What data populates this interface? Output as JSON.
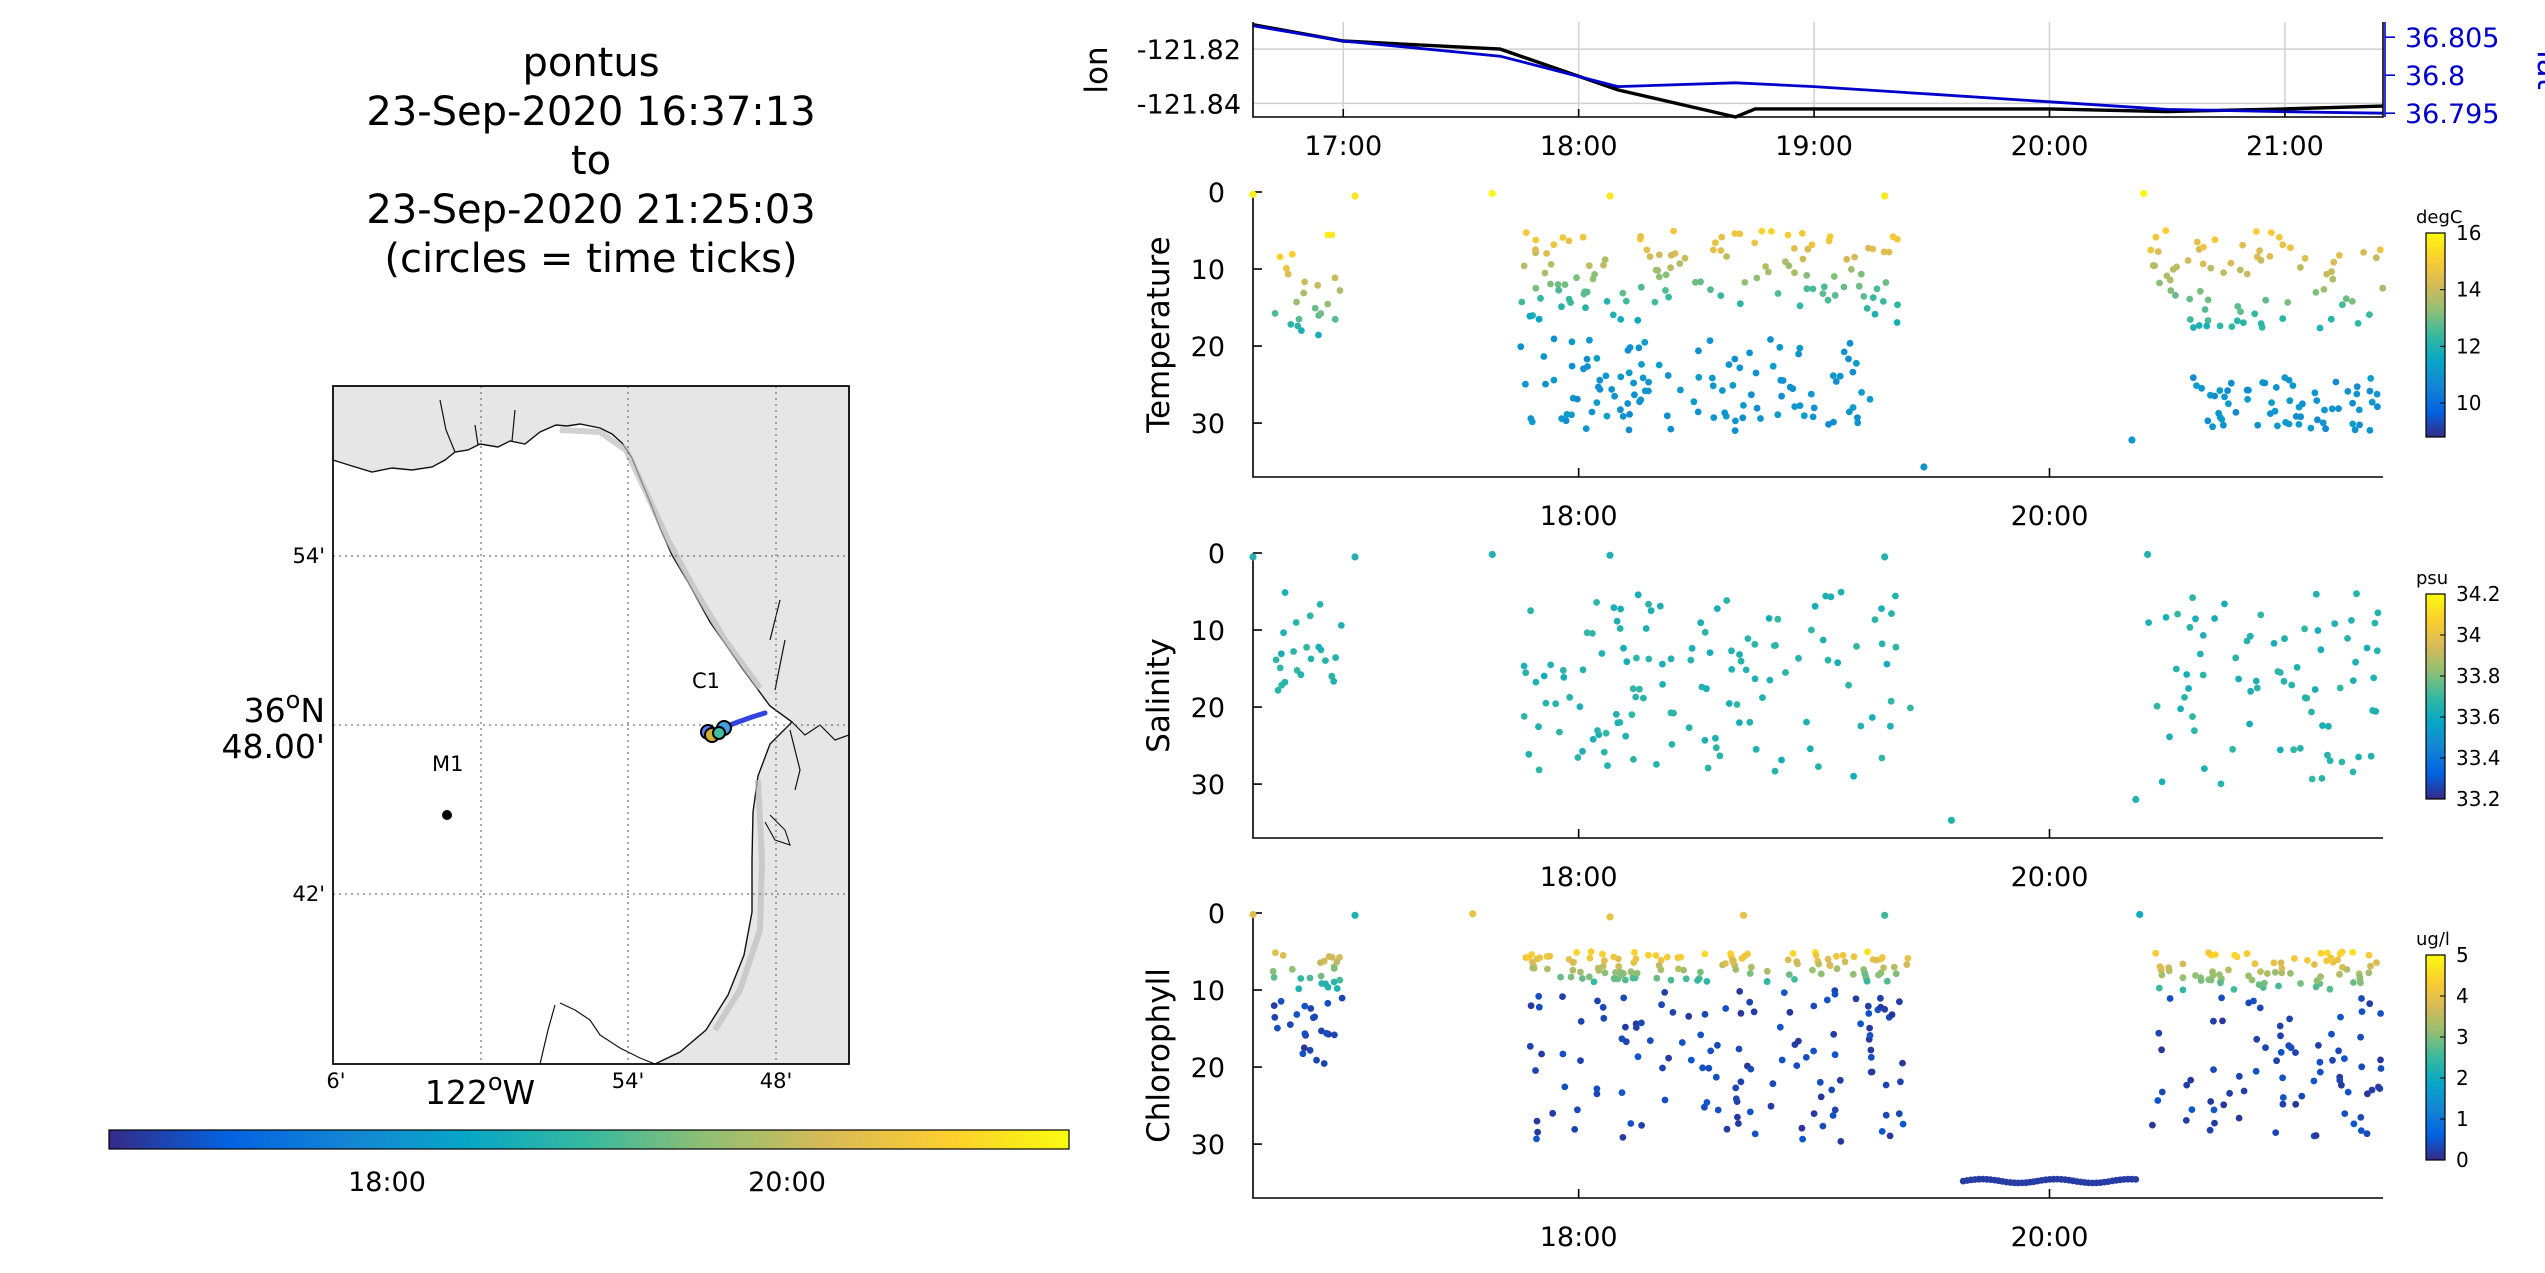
{
  "header": {
    "lines": [
      "pontus",
      "23-Sep-2020 16:37:13",
      "to",
      "23-Sep-2020 21:25:03",
      "(circles = time ticks)"
    ]
  },
  "map": {
    "lat_ticks": [
      "54'",
      "42'"
    ],
    "lat_center_lines": [
      "36",
      "N",
      "48.00'"
    ],
    "lon_ticks": [
      "6'",
      "54'",
      "48'"
    ],
    "lon_center": [
      "122",
      "W"
    ],
    "stations": [
      {
        "label": "M1",
        "lon": -122.035,
        "lat": 36.747
      },
      {
        "label": "C1",
        "lon": -121.845,
        "lat": 36.797
      }
    ],
    "colors": {
      "land": "#e6e6e6",
      "water": "#ffffff",
      "track": "#3344dd"
    }
  },
  "time_colorbar": {
    "ticks": [
      "18:00",
      "20:00"
    ],
    "colormap": "parula"
  },
  "chart_data": [
    {
      "type": "line",
      "name": "position",
      "ylabel": "lon",
      "ylabel_right": "lat",
      "x_ticks": [
        "17:00",
        "18:00",
        "19:00",
        "20:00",
        "21:00"
      ],
      "y_ticks_left": [
        "-121.82",
        "-121.84"
      ],
      "y_ticks_right": [
        "36.805",
        "36.8",
        "36.795"
      ],
      "xlim": [
        "16:37",
        "21:25"
      ],
      "ylim_left": [
        -121.845,
        -121.81
      ],
      "ylim_right": [
        36.7945,
        36.807
      ],
      "grid": true,
      "series": [
        {
          "color": "#000000",
          "x": [
            "16:37",
            "17:00",
            "17:40",
            "18:10",
            "18:40",
            "18:45",
            "19:30",
            "20:00",
            "20:30",
            "21:00",
            "21:25"
          ],
          "y": [
            -121.811,
            -121.817,
            -121.82,
            -121.835,
            -121.845,
            -121.842,
            -121.842,
            -121.842,
            -121.843,
            -121.842,
            -121.841
          ]
        },
        {
          "color": "#0000cc",
          "x": [
            "16:37",
            "17:00",
            "17:40",
            "18:10",
            "18:40",
            "19:00",
            "19:30",
            "20:00",
            "20:30",
            "21:00",
            "21:25"
          ],
          "y": [
            36.8065,
            36.8045,
            36.8025,
            36.7985,
            36.799,
            36.7985,
            36.7975,
            36.7965,
            36.7955,
            36.7952,
            36.795
          ]
        }
      ]
    },
    {
      "type": "scatter",
      "name": "temperature",
      "ylabel": "Temperature",
      "unit": "degC",
      "y_ticks": [
        "0",
        "10",
        "20",
        "30"
      ],
      "x_ticks": [
        "18:00",
        "20:00"
      ],
      "xlim": [
        "16:37",
        "21:25"
      ],
      "ylim": [
        37,
        0
      ],
      "clim": [
        8.8,
        16
      ],
      "cbar_ticks": [
        "16",
        "14",
        "12",
        "10"
      ],
      "seed": 11,
      "groups": [
        {
          "t": [
            "16:42",
            "17:00"
          ],
          "depth": [
            5,
            20
          ],
          "value": [
            16,
            11.5
          ]
        },
        {
          "t": [
            "17:45",
            "19:22"
          ],
          "depth": [
            5,
            17
          ],
          "value": [
            15,
            11.5
          ]
        },
        {
          "t": [
            "17:45",
            "19:15"
          ],
          "depth": [
            19,
            31
          ],
          "value": [
            11,
            11
          ]
        },
        {
          "t": [
            "20:25",
            "21:25"
          ],
          "depth": [
            5,
            18
          ],
          "value": [
            15,
            12
          ]
        },
        {
          "t": [
            "20:35",
            "21:25"
          ],
          "depth": [
            24,
            31
          ],
          "value": [
            11,
            11
          ]
        }
      ],
      "fixed_points": [
        {
          "t": "16:37",
          "depth": 0.3,
          "value": 15.8
        },
        {
          "t": "17:03",
          "depth": 0.5,
          "value": 15.5
        },
        {
          "t": "17:38",
          "depth": 0.2,
          "value": 15.9
        },
        {
          "t": "18:08",
          "depth": 0.5,
          "value": 15.6
        },
        {
          "t": "19:18",
          "depth": 0.5,
          "value": 15.7
        },
        {
          "t": "20:24",
          "depth": 0.2,
          "value": 15.9
        },
        {
          "t": "19:28",
          "depth": 35.7,
          "value": 11
        },
        {
          "t": "20:21",
          "depth": 32.2,
          "value": 11
        }
      ]
    },
    {
      "type": "scatter",
      "name": "salinity",
      "ylabel": "Salinity",
      "unit": "psu",
      "y_ticks": [
        "0",
        "10",
        "20",
        "30"
      ],
      "x_ticks": [
        "18:00",
        "20:00"
      ],
      "xlim": [
        "16:37",
        "21:25"
      ],
      "ylim": [
        37,
        0
      ],
      "clim": [
        33.2,
        34.2
      ],
      "cbar_ticks": [
        "34.2",
        "34",
        "33.8",
        "33.6",
        "33.4",
        "33.2"
      ],
      "seed": 23,
      "groups": [
        {
          "t": [
            "16:42",
            "17:00"
          ],
          "depth": [
            5,
            18
          ],
          "value": [
            33.65,
            33.65
          ]
        },
        {
          "t": [
            "17:45",
            "19:25"
          ],
          "depth": [
            5,
            29
          ],
          "value": [
            33.65,
            33.65
          ]
        },
        {
          "t": [
            "20:25",
            "21:25"
          ],
          "depth": [
            5,
            30
          ],
          "value": [
            33.65,
            33.65
          ]
        }
      ],
      "fixed_points": [
        {
          "t": "16:37",
          "depth": 0.5,
          "value": 33.65
        },
        {
          "t": "17:03",
          "depth": 0.5,
          "value": 33.65
        },
        {
          "t": "17:38",
          "depth": 0.2,
          "value": 33.65
        },
        {
          "t": "18:08",
          "depth": 0.3,
          "value": 33.65
        },
        {
          "t": "19:18",
          "depth": 0.5,
          "value": 33.65
        },
        {
          "t": "20:25",
          "depth": 0.2,
          "value": 33.65
        },
        {
          "t": "19:35",
          "depth": 34.7,
          "value": 33.65
        },
        {
          "t": "20:22",
          "depth": 32,
          "value": 33.65
        }
      ]
    },
    {
      "type": "scatter",
      "name": "chlorophyll",
      "ylabel": "Chlorophyll",
      "unit": "ug/l",
      "y_ticks": [
        "0",
        "10",
        "20",
        "30"
      ],
      "x_ticks": [
        "18:00",
        "20:00"
      ],
      "xlim": [
        "16:37",
        "21:25"
      ],
      "ylim": [
        37,
        0
      ],
      "clim": [
        0,
        5
      ],
      "cbar_ticks": [
        "5",
        "4",
        "3",
        "2",
        "1",
        "0"
      ],
      "seed": 37,
      "groups": [
        {
          "t": [
            "16:42",
            "17:00"
          ],
          "depth": [
            5,
            10
          ],
          "value": [
            4,
            2
          ]
        },
        {
          "t": [
            "16:42",
            "17:00"
          ],
          "depth": [
            11,
            20
          ],
          "value": [
            0.3,
            0.3
          ]
        },
        {
          "t": [
            "17:45",
            "19:25"
          ],
          "depth": [
            5,
            9
          ],
          "value": [
            4.5,
            2.5
          ]
        },
        {
          "t": [
            "17:45",
            "19:25"
          ],
          "depth": [
            10,
            30
          ],
          "value": [
            0.3,
            0.3
          ]
        },
        {
          "t": [
            "20:25",
            "21:25"
          ],
          "depth": [
            5,
            10
          ],
          "value": [
            4.5,
            2.5
          ]
        },
        {
          "t": [
            "20:25",
            "21:25"
          ],
          "depth": [
            11,
            29
          ],
          "value": [
            0.3,
            0.3
          ]
        }
      ],
      "fixed_points": [
        {
          "t": "16:37",
          "depth": 0.2,
          "value": 3.8
        },
        {
          "t": "17:03",
          "depth": 0.3,
          "value": 2.2
        },
        {
          "t": "17:33",
          "depth": 0.1,
          "value": 4
        },
        {
          "t": "18:08",
          "depth": 0.5,
          "value": 4
        },
        {
          "t": "18:42",
          "depth": 0.3,
          "value": 4
        },
        {
          "t": "19:18",
          "depth": 0.3,
          "value": 2.5
        },
        {
          "t": "20:23",
          "depth": 0.2,
          "value": 2
        }
      ]
    }
  ]
}
